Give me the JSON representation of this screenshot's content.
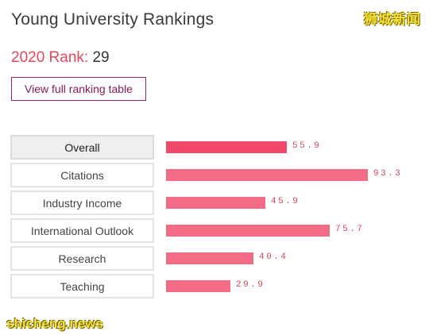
{
  "header": {
    "title": "Young University Rankings",
    "watermark": "狮城新闻"
  },
  "rank": {
    "label": "2020 Rank:",
    "value": "29"
  },
  "view_button": {
    "label": "View full ranking table"
  },
  "chart_data": {
    "type": "bar",
    "orientation": "horizontal",
    "categories": [
      "Overall",
      "Citations",
      "Industry Income",
      "International Outlook",
      "Research",
      "Teaching"
    ],
    "values": [
      55.9,
      93.3,
      45.9,
      75.7,
      40.4,
      29.9
    ],
    "value_labels": [
      "55.9",
      "93.3",
      "45.9",
      "75.7",
      "40.4",
      "29.9"
    ],
    "xlim": [
      0,
      100
    ],
    "active_category": "Overall",
    "colors": {
      "bar": "#f36b84",
      "active_bar": "#f2496a"
    }
  },
  "footer": {
    "watermark": "shicheng.news"
  }
}
